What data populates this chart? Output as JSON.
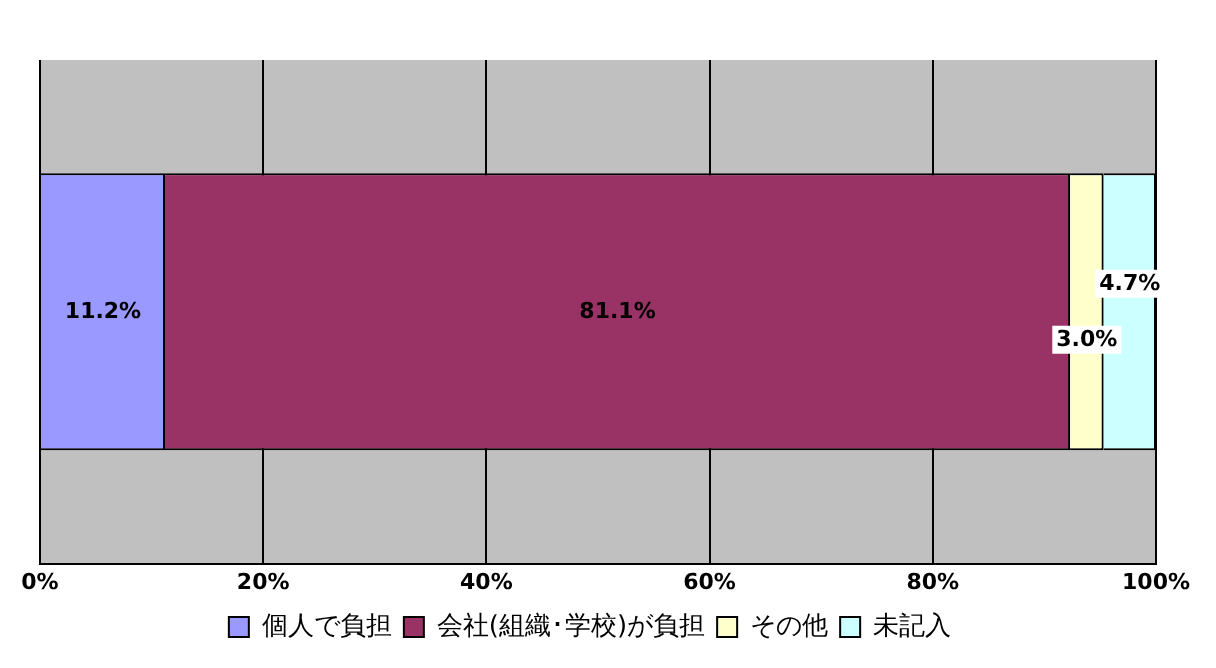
{
  "chart_data": {
    "type": "bar",
    "orientation": "horizontal",
    "stacked": true,
    "categories": [
      null
    ],
    "series": [
      {
        "name": "個人で負担",
        "color": "#9999ff",
        "values": [
          11.2
        ],
        "value_labels": [
          "11.2%"
        ]
      },
      {
        "name": "会社(組織･学校)が負担",
        "color": "#993366",
        "values": [
          81.1
        ],
        "value_labels": [
          "81.1%"
        ]
      },
      {
        "name": "その他",
        "color": "#ffffcc",
        "values": [
          3.0
        ],
        "value_labels": [
          "3.0%"
        ]
      },
      {
        "name": "未記入",
        "color": "#ccffff",
        "values": [
          4.7
        ],
        "value_labels": [
          "4.7%"
        ]
      }
    ],
    "xlim": [
      0,
      100
    ],
    "xticks": [
      {
        "value": 0,
        "label": "0%"
      },
      {
        "value": 20,
        "label": "20%"
      },
      {
        "value": 40,
        "label": "40%"
      },
      {
        "value": 60,
        "label": "60%"
      },
      {
        "value": 80,
        "label": "80%"
      },
      {
        "value": 100,
        "label": "100%"
      }
    ],
    "grid": "x",
    "legend": "bottom"
  }
}
